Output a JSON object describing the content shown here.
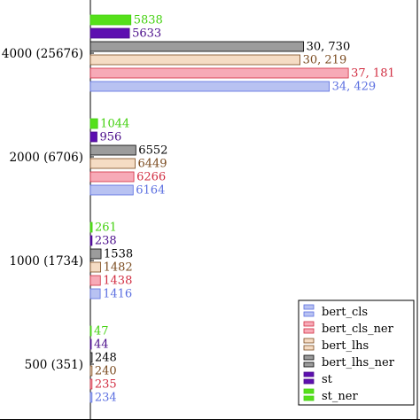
{
  "chart_data": {
    "type": "bar",
    "orientation": "horizontal",
    "title": "",
    "xlabel": "",
    "ylabel": "",
    "xlim": [
      0,
      40000
    ],
    "categories": [
      "4000 (25676)",
      "2000 (6706)",
      "1000 (1734)",
      "500 (351)"
    ],
    "series": [
      {
        "name": "bert_cls",
        "color": "#5a6ee0",
        "fill": "#b8c2f2",
        "values": [
          34429,
          6164,
          1416,
          234
        ],
        "labels": [
          "34, 429",
          "6164",
          "1416",
          "234"
        ]
      },
      {
        "name": "bert_cls_ner",
        "color": "#d12c40",
        "fill": "#f7aab7",
        "values": [
          37181,
          6266,
          1438,
          235
        ],
        "labels": [
          "37, 181",
          "6266",
          "1438",
          "235"
        ]
      },
      {
        "name": "bert_lhs",
        "color": "#7a4a1e",
        "fill": "#f5dcc4",
        "values": [
          30219,
          6449,
          1482,
          240
        ],
        "labels": [
          "30, 219",
          "6449",
          "1482",
          "240"
        ]
      },
      {
        "name": "bert_lhs_ner",
        "color": "#000000",
        "fill": "#9c9c9c",
        "values": [
          30730,
          6552,
          1538,
          248
        ],
        "labels": [
          "30, 730",
          "6552",
          "1538",
          "248"
        ]
      },
      {
        "name": "st",
        "color": "#4a0d8a",
        "fill": "#5d0fb0",
        "values": [
          5633,
          956,
          238,
          44
        ],
        "labels": [
          "5633",
          "956",
          "238",
          "44"
        ]
      },
      {
        "name": "st_ner",
        "color": "#43d10f",
        "fill": "#55e01a",
        "values": [
          5838,
          1044,
          261,
          47
        ],
        "labels": [
          "5838",
          "1044",
          "261",
          "47"
        ]
      }
    ],
    "legend": {
      "position": "bottom-right"
    },
    "grid": false
  }
}
